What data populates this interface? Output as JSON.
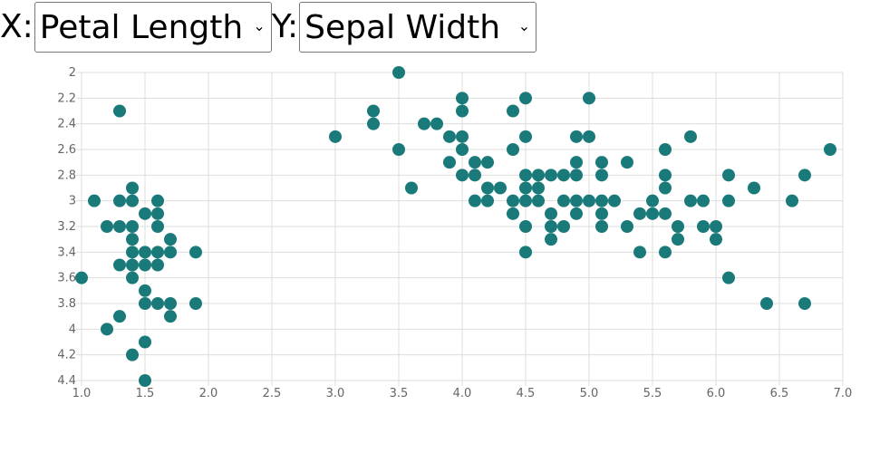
{
  "controls": {
    "x_label": "X:",
    "x_selected": "Petal Length",
    "y_label": "Y:",
    "y_selected": "Sepal Width",
    "chevron_icon": "chevron-down-icon"
  },
  "colors": {
    "point": "#1a7a7a",
    "grid": "#dddddd",
    "tick_text": "#666666"
  },
  "chart_data": {
    "type": "scatter",
    "xlabel": "",
    "ylabel": "",
    "xlim": [
      1.0,
      7.0
    ],
    "ylim": [
      2.0,
      4.4
    ],
    "y_inverted": true,
    "grid": true,
    "x_ticks": [
      "1.0",
      "1.5",
      "2.0",
      "2.5",
      "3.0",
      "3.5",
      "4.0",
      "4.5",
      "5.0",
      "5.5",
      "6.0",
      "6.5",
      "7.0"
    ],
    "y_ticks": [
      "2",
      "2.2",
      "2.4",
      "2.6",
      "2.8",
      "3",
      "3.2",
      "3.4",
      "3.6",
      "3.8",
      "4",
      "4.2",
      "4.4"
    ],
    "points": [
      [
        1.0,
        3.6
      ],
      [
        1.1,
        3.0
      ],
      [
        1.2,
        3.2
      ],
      [
        1.2,
        4.0
      ],
      [
        1.3,
        2.3
      ],
      [
        1.3,
        3.0
      ],
      [
        1.3,
        3.2
      ],
      [
        1.3,
        3.5
      ],
      [
        1.3,
        3.9
      ],
      [
        1.4,
        2.9
      ],
      [
        1.4,
        3.0
      ],
      [
        1.4,
        3.2
      ],
      [
        1.4,
        3.3
      ],
      [
        1.4,
        3.4
      ],
      [
        1.4,
        3.5
      ],
      [
        1.4,
        3.6
      ],
      [
        1.4,
        4.2
      ],
      [
        1.5,
        3.1
      ],
      [
        1.5,
        3.4
      ],
      [
        1.5,
        3.5
      ],
      [
        1.5,
        3.7
      ],
      [
        1.5,
        3.8
      ],
      [
        1.5,
        4.1
      ],
      [
        1.5,
        4.4
      ],
      [
        1.6,
        3.0
      ],
      [
        1.6,
        3.1
      ],
      [
        1.6,
        3.2
      ],
      [
        1.6,
        3.4
      ],
      [
        1.6,
        3.5
      ],
      [
        1.6,
        3.8
      ],
      [
        1.7,
        3.3
      ],
      [
        1.7,
        3.4
      ],
      [
        1.7,
        3.8
      ],
      [
        1.7,
        3.9
      ],
      [
        1.9,
        3.4
      ],
      [
        1.9,
        3.8
      ],
      [
        3.0,
        2.5
      ],
      [
        3.3,
        2.3
      ],
      [
        3.3,
        2.4
      ],
      [
        3.5,
        2.0
      ],
      [
        3.5,
        2.6
      ],
      [
        3.6,
        2.9
      ],
      [
        3.7,
        2.4
      ],
      [
        3.8,
        2.4
      ],
      [
        3.9,
        2.5
      ],
      [
        3.9,
        2.7
      ],
      [
        4.0,
        2.2
      ],
      [
        4.0,
        2.3
      ],
      [
        4.0,
        2.5
      ],
      [
        4.0,
        2.6
      ],
      [
        4.0,
        2.8
      ],
      [
        4.1,
        2.7
      ],
      [
        4.1,
        2.8
      ],
      [
        4.1,
        3.0
      ],
      [
        4.2,
        2.7
      ],
      [
        4.2,
        2.9
      ],
      [
        4.2,
        3.0
      ],
      [
        4.3,
        2.9
      ],
      [
        4.4,
        2.3
      ],
      [
        4.4,
        2.6
      ],
      [
        4.4,
        3.0
      ],
      [
        4.4,
        3.1
      ],
      [
        4.5,
        2.2
      ],
      [
        4.5,
        2.5
      ],
      [
        4.5,
        2.8
      ],
      [
        4.5,
        2.9
      ],
      [
        4.5,
        3.0
      ],
      [
        4.5,
        3.2
      ],
      [
        4.5,
        3.4
      ],
      [
        4.6,
        2.8
      ],
      [
        4.6,
        2.9
      ],
      [
        4.6,
        3.0
      ],
      [
        4.7,
        2.8
      ],
      [
        4.7,
        3.1
      ],
      [
        4.7,
        3.2
      ],
      [
        4.7,
        3.3
      ],
      [
        4.8,
        2.8
      ],
      [
        4.8,
        3.0
      ],
      [
        4.8,
        3.2
      ],
      [
        4.9,
        2.5
      ],
      [
        4.9,
        2.7
      ],
      [
        4.9,
        2.8
      ],
      [
        4.9,
        3.0
      ],
      [
        4.9,
        3.1
      ],
      [
        5.0,
        2.2
      ],
      [
        5.0,
        2.5
      ],
      [
        5.0,
        3.0
      ],
      [
        5.1,
        2.7
      ],
      [
        5.1,
        2.8
      ],
      [
        5.1,
        3.0
      ],
      [
        5.1,
        3.1
      ],
      [
        5.1,
        3.2
      ],
      [
        5.2,
        3.0
      ],
      [
        5.3,
        2.7
      ],
      [
        5.3,
        3.2
      ],
      [
        5.4,
        3.1
      ],
      [
        5.4,
        3.4
      ],
      [
        5.5,
        3.0
      ],
      [
        5.5,
        3.1
      ],
      [
        5.6,
        2.6
      ],
      [
        5.6,
        2.8
      ],
      [
        5.6,
        2.9
      ],
      [
        5.6,
        3.1
      ],
      [
        5.6,
        3.4
      ],
      [
        5.7,
        3.2
      ],
      [
        5.7,
        3.3
      ],
      [
        5.8,
        2.5
      ],
      [
        5.8,
        3.0
      ],
      [
        5.9,
        3.0
      ],
      [
        5.9,
        3.2
      ],
      [
        6.0,
        3.2
      ],
      [
        6.0,
        3.3
      ],
      [
        6.1,
        2.8
      ],
      [
        6.1,
        3.0
      ],
      [
        6.1,
        3.6
      ],
      [
        6.3,
        2.9
      ],
      [
        6.4,
        3.8
      ],
      [
        6.6,
        3.0
      ],
      [
        6.7,
        2.8
      ],
      [
        6.7,
        3.8
      ],
      [
        6.9,
        2.6
      ]
    ]
  }
}
